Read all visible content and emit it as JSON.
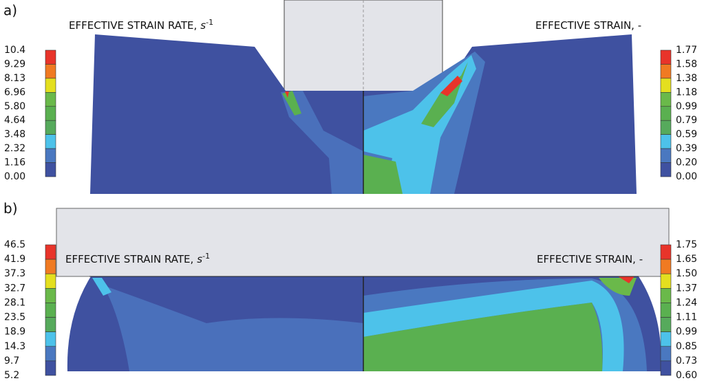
{
  "panels": [
    {
      "label": "a)",
      "left_title": "EFFECTIVE STRAIN RATE,",
      "left_unit": "s",
      "left_unit_exp": "-1",
      "right_title": "EFFECTIVE STRAIN, -",
      "left_scale": [
        "10.4",
        "9.29",
        "8.13",
        "6.96",
        "5.80",
        "4.64",
        "3.48",
        "2.32",
        "1.16",
        "0.00"
      ],
      "right_scale": [
        "1.77",
        "1.58",
        "1.38",
        "1.18",
        "0.99",
        "0.79",
        "0.59",
        "0.39",
        "0.20",
        "0.00"
      ]
    },
    {
      "label": "b)",
      "left_title": "EFFECTIVE STRAIN RATE,",
      "left_unit": "s",
      "left_unit_exp": "-1",
      "right_title": "EFFECTIVE STRAIN, -",
      "left_scale": [
        "46.5",
        "41.9",
        "37.3",
        "32.7",
        "28.1",
        "23.5",
        "18.9",
        "14.3",
        "9.7",
        "5.2"
      ],
      "right_scale": [
        "1.75",
        "1.65",
        "1.50",
        "1.37",
        "1.24",
        "1.11",
        "0.99",
        "0.85",
        "0.73",
        "0.60"
      ]
    }
  ]
}
